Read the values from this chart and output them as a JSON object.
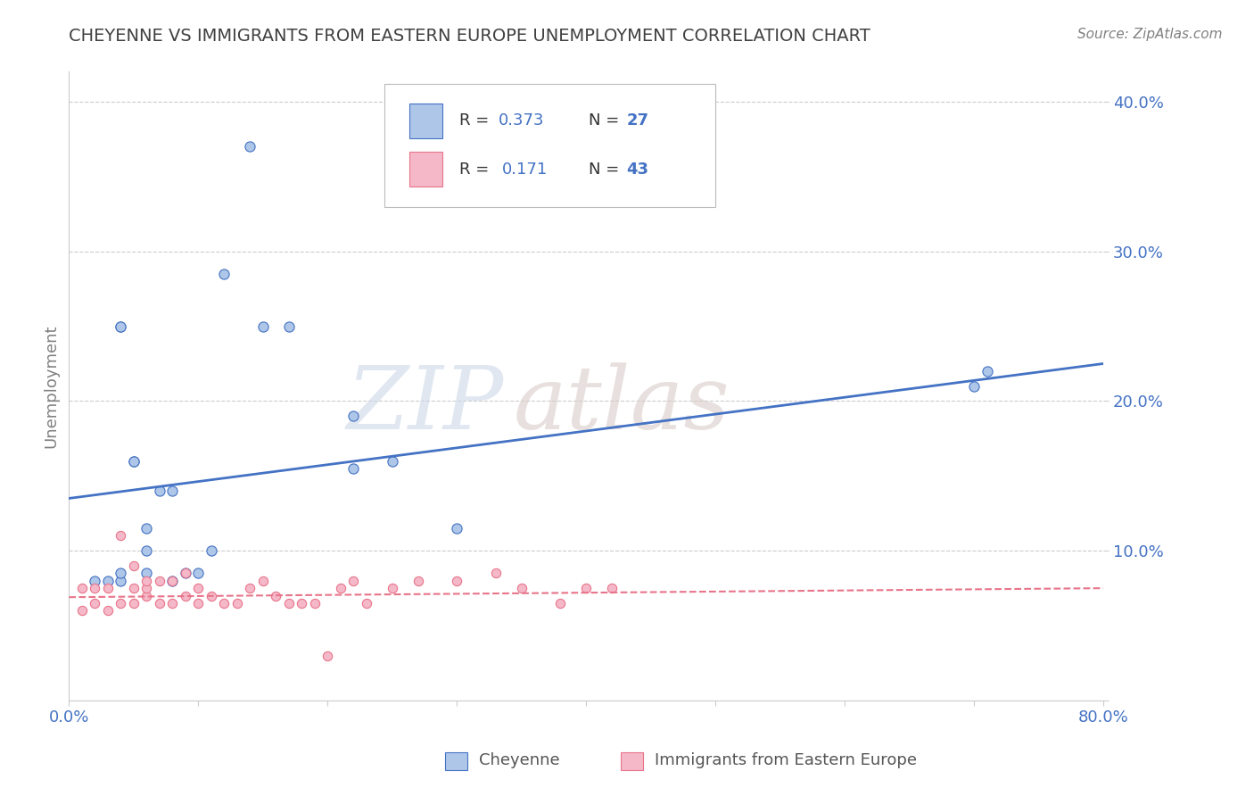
{
  "title": "CHEYENNE VS IMMIGRANTS FROM EASTERN EUROPE UNEMPLOYMENT CORRELATION CHART",
  "source": "Source: ZipAtlas.com",
  "ylabel": "Unemployment",
  "xmin": 0.0,
  "xmax": 0.8,
  "ymin": 0.0,
  "ymax": 0.42,
  "blue_scatter_x": [
    0.02,
    0.03,
    0.04,
    0.04,
    0.05,
    0.07,
    0.08,
    0.1,
    0.11,
    0.14,
    0.15,
    0.17,
    0.04,
    0.05,
    0.06,
    0.06,
    0.09,
    0.22,
    0.22,
    0.3,
    0.7,
    0.71,
    0.12,
    0.08,
    0.06,
    0.04,
    0.25
  ],
  "blue_scatter_y": [
    0.08,
    0.08,
    0.25,
    0.25,
    0.16,
    0.14,
    0.08,
    0.085,
    0.1,
    0.37,
    0.25,
    0.25,
    0.08,
    0.16,
    0.085,
    0.115,
    0.085,
    0.19,
    0.155,
    0.115,
    0.21,
    0.22,
    0.285,
    0.14,
    0.1,
    0.085,
    0.16
  ],
  "pink_scatter_x": [
    0.01,
    0.01,
    0.02,
    0.02,
    0.03,
    0.03,
    0.04,
    0.04,
    0.05,
    0.05,
    0.05,
    0.06,
    0.06,
    0.06,
    0.07,
    0.07,
    0.08,
    0.08,
    0.09,
    0.09,
    0.1,
    0.1,
    0.11,
    0.12,
    0.13,
    0.14,
    0.15,
    0.16,
    0.17,
    0.18,
    0.19,
    0.2,
    0.21,
    0.22,
    0.23,
    0.25,
    0.27,
    0.3,
    0.33,
    0.35,
    0.38,
    0.4,
    0.42
  ],
  "pink_scatter_y": [
    0.06,
    0.075,
    0.065,
    0.075,
    0.06,
    0.075,
    0.065,
    0.11,
    0.065,
    0.075,
    0.09,
    0.07,
    0.075,
    0.08,
    0.065,
    0.08,
    0.065,
    0.08,
    0.07,
    0.085,
    0.065,
    0.075,
    0.07,
    0.065,
    0.065,
    0.075,
    0.08,
    0.07,
    0.065,
    0.065,
    0.065,
    0.03,
    0.075,
    0.08,
    0.065,
    0.075,
    0.08,
    0.08,
    0.085,
    0.075,
    0.065,
    0.075,
    0.075
  ],
  "blue_line_x": [
    0.0,
    0.8
  ],
  "blue_line_y_start": 0.135,
  "blue_line_y_end": 0.225,
  "pink_line_x": [
    0.0,
    0.8
  ],
  "pink_line_y_start": 0.069,
  "pink_line_y_end": 0.075,
  "blue_color": "#4472c4",
  "pink_color": "#e8748a",
  "blue_marker_color": "#aec6e8",
  "pink_marker_color": "#f4b8c8",
  "blue_marker_edge": "#4472c4",
  "pink_marker_edge": "#e8748a",
  "grid_color": "#cccccc",
  "background_color": "#ffffff",
  "title_color": "#404040",
  "source_color": "#808080",
  "tick_label_color": "#4472c4",
  "axis_label_color": "#808080"
}
